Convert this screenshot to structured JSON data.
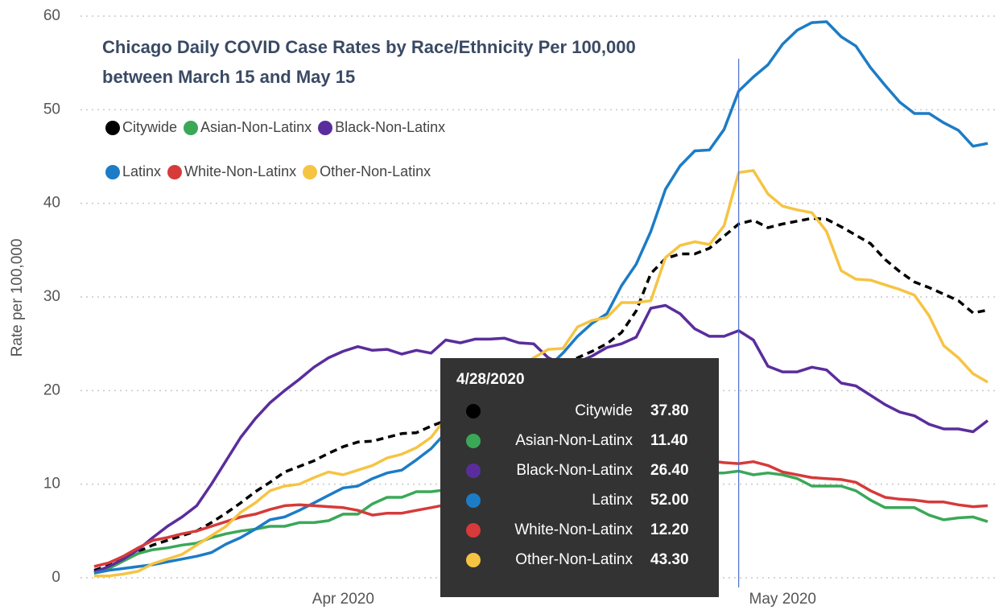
{
  "chart_data": {
    "type": "line",
    "title": "Chicago Daily COVID Case Rates by Race/Ethnicity Per 100,000 between March 15 and May 15",
    "y_label": "Rate per 100,000",
    "x": [
      "3/15/2020",
      "3/16/2020",
      "3/17/2020",
      "3/18/2020",
      "3/19/2020",
      "3/20/2020",
      "3/21/2020",
      "3/22/2020",
      "3/23/2020",
      "3/24/2020",
      "3/25/2020",
      "3/26/2020",
      "3/27/2020",
      "3/28/2020",
      "3/29/2020",
      "3/30/2020",
      "3/31/2020",
      "4/1/2020",
      "4/2/2020",
      "4/3/2020",
      "4/4/2020",
      "4/5/2020",
      "4/6/2020",
      "4/7/2020",
      "4/8/2020",
      "4/9/2020",
      "4/10/2020",
      "4/11/2020",
      "4/12/2020",
      "4/13/2020",
      "4/14/2020",
      "4/15/2020",
      "4/16/2020",
      "4/17/2020",
      "4/18/2020",
      "4/19/2020",
      "4/20/2020",
      "4/21/2020",
      "4/22/2020",
      "4/23/2020",
      "4/24/2020",
      "4/25/2020",
      "4/26/2020",
      "4/27/2020",
      "4/28/2020",
      "4/29/2020",
      "4/30/2020",
      "5/1/2020",
      "5/2/2020",
      "5/3/2020",
      "5/4/2020",
      "5/5/2020",
      "5/6/2020",
      "5/7/2020",
      "5/8/2020",
      "5/9/2020",
      "5/10/2020",
      "5/11/2020",
      "5/12/2020",
      "5/13/2020",
      "5/14/2020",
      "5/15/2020"
    ],
    "xticks": [
      {
        "value": "4/1/2020",
        "label": "Apr 2020"
      },
      {
        "value": "5/1/2020",
        "label": "May 2020"
      }
    ],
    "ylim": [
      0,
      60
    ],
    "yticks": [
      0,
      10,
      20,
      30,
      40,
      50,
      60
    ],
    "grid": true,
    "series": [
      {
        "name": "Citywide",
        "color": "#000000",
        "line_style": "dashed",
        "values": [
          0.8,
          1.3,
          2.0,
          2.8,
          3.5,
          4.0,
          4.5,
          5.0,
          5.9,
          6.9,
          8.0,
          9.2,
          10.2,
          11.3,
          11.9,
          12.5,
          13.3,
          14.0,
          14.5,
          14.6,
          15.0,
          15.4,
          15.5,
          16.2,
          16.8,
          17.5,
          18.2,
          19.0,
          19.8,
          20.5,
          21.2,
          22.0,
          22.8,
          23.5,
          24.2,
          25.0,
          26.2,
          28.5,
          32.5,
          34.1,
          34.6,
          34.6,
          35.2,
          36.5,
          37.8,
          38.2,
          37.4,
          37.8,
          38.1,
          38.4,
          38.3,
          37.5,
          36.6,
          35.7,
          34.0,
          32.7,
          31.6,
          31.0,
          30.3,
          29.6,
          28.3,
          28.6
        ]
      },
      {
        "name": "Asian-Non-Latinx",
        "color": "#3aa857",
        "values": [
          0.5,
          1.0,
          1.8,
          2.6,
          3.0,
          3.2,
          3.5,
          3.7,
          4.3,
          4.7,
          5.0,
          5.2,
          5.5,
          5.5,
          5.9,
          5.9,
          6.1,
          6.8,
          6.8,
          7.9,
          8.6,
          8.6,
          9.2,
          9.2,
          9.4,
          9.6,
          9.8,
          9.9,
          10.0,
          10.1,
          10.2,
          10.3,
          10.4,
          10.5,
          10.6,
          10.7,
          10.8,
          10.9,
          11.0,
          11.0,
          11.1,
          11.1,
          11.2,
          11.2,
          11.4,
          11.0,
          11.2,
          11.0,
          10.6,
          9.8,
          9.8,
          9.8,
          9.3,
          8.3,
          7.5,
          7.5,
          7.5,
          6.7,
          6.2,
          6.4,
          6.5,
          6.0
        ]
      },
      {
        "name": "Black-Non-Latinx",
        "color": "#5a2d9c",
        "values": [
          0.6,
          1.2,
          2.0,
          3.0,
          4.3,
          5.5,
          6.5,
          7.7,
          10.0,
          12.5,
          15.0,
          17.0,
          18.7,
          20.0,
          21.2,
          22.5,
          23.5,
          24.2,
          24.7,
          24.3,
          24.4,
          23.9,
          24.3,
          24.0,
          25.4,
          25.1,
          25.5,
          25.5,
          25.6,
          25.1,
          25.0,
          23.5,
          22.8,
          23.0,
          23.7,
          24.6,
          25.0,
          25.7,
          28.8,
          29.1,
          28.2,
          26.6,
          25.8,
          25.8,
          26.4,
          25.4,
          22.6,
          22.0,
          22.0,
          22.5,
          22.2,
          20.8,
          20.5,
          19.5,
          18.5,
          17.7,
          17.3,
          16.4,
          15.9,
          15.9,
          15.6,
          16.8
        ]
      },
      {
        "name": "Latinx",
        "color": "#1c7cc6",
        "values": [
          0.5,
          0.8,
          1.0,
          1.2,
          1.4,
          1.7,
          2.0,
          2.3,
          2.7,
          3.6,
          4.3,
          5.2,
          6.2,
          6.5,
          7.2,
          8.0,
          8.8,
          9.6,
          9.8,
          10.6,
          11.2,
          11.5,
          12.6,
          13.8,
          15.5,
          16.5,
          17.5,
          18.5,
          19.5,
          20.5,
          21.5,
          22.5,
          24.0,
          25.8,
          27.2,
          28.2,
          31.2,
          33.5,
          37.0,
          41.5,
          44.0,
          45.6,
          45.7,
          47.9,
          52.0,
          53.5,
          54.8,
          57.0,
          58.5,
          59.3,
          59.4,
          57.8,
          56.8,
          54.5,
          52.6,
          50.8,
          49.6,
          49.6,
          48.6,
          47.8,
          46.1,
          46.4
        ]
      },
      {
        "name": "White-Non-Latinx",
        "color": "#d63a3a",
        "values": [
          1.2,
          1.6,
          2.3,
          3.2,
          4.0,
          4.3,
          4.7,
          5.0,
          5.5,
          6.0,
          6.5,
          6.8,
          7.3,
          7.7,
          7.8,
          7.7,
          7.6,
          7.5,
          7.2,
          6.7,
          6.9,
          6.9,
          7.2,
          7.5,
          7.8,
          8.1,
          8.4,
          8.7,
          9.0,
          9.3,
          9.6,
          9.9,
          10.2,
          10.5,
          10.8,
          11.1,
          11.4,
          11.7,
          12.0,
          12.2,
          12.4,
          12.5,
          12.5,
          12.3,
          12.2,
          12.4,
          12.0,
          11.3,
          11.0,
          10.7,
          10.6,
          10.5,
          10.2,
          9.3,
          8.6,
          8.4,
          8.3,
          8.1,
          8.1,
          7.8,
          7.6,
          7.7
        ]
      },
      {
        "name": "Other-Non-Latinx",
        "color": "#f6c443",
        "values": [
          0.2,
          0.2,
          0.4,
          0.7,
          1.5,
          2.0,
          2.5,
          3.5,
          4.5,
          5.5,
          7.0,
          8.0,
          9.3,
          9.8,
          10.0,
          10.7,
          11.3,
          11.0,
          11.5,
          12.0,
          12.8,
          13.2,
          13.9,
          15.0,
          17.0,
          18.5,
          19.5,
          20.5,
          21.5,
          22.5,
          23.5,
          24.4,
          24.5,
          26.8,
          27.5,
          27.8,
          29.4,
          29.4,
          29.6,
          34.2,
          35.5,
          35.9,
          35.6,
          37.6,
          43.3,
          43.5,
          41.0,
          39.7,
          39.3,
          39.0,
          37.0,
          32.8,
          31.9,
          31.8,
          31.3,
          30.8,
          30.2,
          28.0,
          24.8,
          23.5,
          21.8,
          20.9
        ]
      }
    ],
    "tooltip": {
      "date": "4/28/2020",
      "value_labels": [
        "37.80",
        "11.40",
        "26.40",
        "52.00",
        "12.20",
        "43.30"
      ]
    }
  }
}
